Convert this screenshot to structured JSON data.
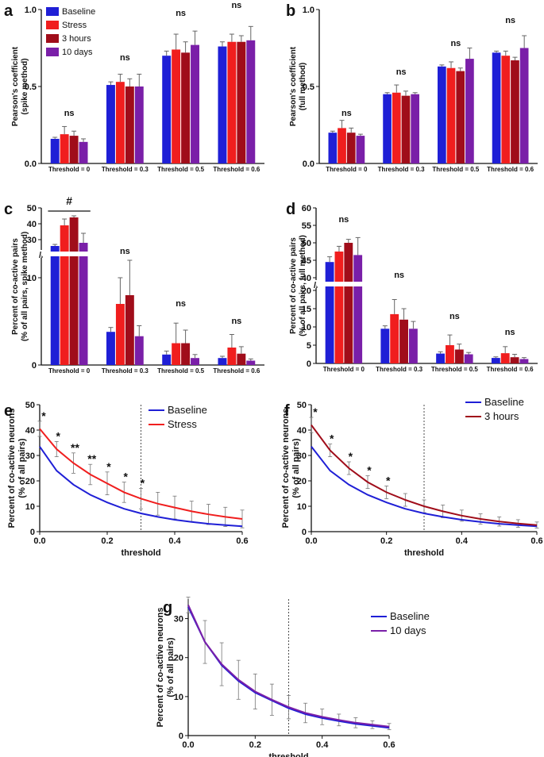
{
  "figure": {
    "legend_groups": [
      "Baseline",
      "Stress",
      "3 hours",
      "10 days"
    ],
    "colors": {
      "Baseline": "#1f1fd6",
      "Stress": "#f01e1e",
      "3 hours": "#a00d1a",
      "10 days": "#7a1fa8"
    },
    "axis_break": "//"
  },
  "chart_data": [
    {
      "id": "a",
      "type": "bar",
      "panel_label": "a",
      "ylabel_lines": [
        "Pearson's coefficient",
        "(spike method)"
      ],
      "ylim": [
        0,
        1
      ],
      "yticks": [
        "0.0",
        "0.5",
        "1.0"
      ],
      "categories": [
        "Threshold = 0",
        "Threshold = 0.3",
        "Threshold = 0.5",
        "Threshold = 0.6"
      ],
      "series": [
        {
          "name": "Baseline",
          "values": [
            0.16,
            0.51,
            0.7,
            0.76
          ],
          "errors": [
            0.01,
            0.02,
            0.03,
            0.03
          ]
        },
        {
          "name": "Stress",
          "values": [
            0.19,
            0.53,
            0.74,
            0.79
          ],
          "errors": [
            0.05,
            0.05,
            0.1,
            0.05
          ]
        },
        {
          "name": "3 hours",
          "values": [
            0.18,
            0.5,
            0.72,
            0.79
          ],
          "errors": [
            0.03,
            0.05,
            0.07,
            0.04
          ]
        },
        {
          "name": "10 days",
          "values": [
            0.14,
            0.5,
            0.77,
            0.8
          ],
          "errors": [
            0.02,
            0.08,
            0.09,
            0.09
          ]
        }
      ],
      "annotations": [
        "ns",
        "ns",
        "ns",
        "ns"
      ]
    },
    {
      "id": "b",
      "type": "bar",
      "panel_label": "b",
      "ylabel_lines": [
        "Pearson's coefficient",
        "(full method)"
      ],
      "ylim": [
        0,
        1
      ],
      "yticks": [
        "0.0",
        "0.5",
        "1.0"
      ],
      "categories": [
        "Threshold = 0",
        "Threshold = 0.3",
        "Threshold = 0.5",
        "Threshold = 0.6"
      ],
      "series": [
        {
          "name": "Baseline",
          "values": [
            0.2,
            0.45,
            0.63,
            0.72
          ],
          "errors": [
            0.01,
            0.01,
            0.01,
            0.01
          ]
        },
        {
          "name": "Stress",
          "values": [
            0.23,
            0.46,
            0.62,
            0.7
          ],
          "errors": [
            0.05,
            0.05,
            0.04,
            0.03
          ]
        },
        {
          "name": "3 hours",
          "values": [
            0.2,
            0.44,
            0.6,
            0.67
          ],
          "errors": [
            0.03,
            0.03,
            0.02,
            0.02
          ]
        },
        {
          "name": "10 days",
          "values": [
            0.18,
            0.45,
            0.68,
            0.75
          ],
          "errors": [
            0.01,
            0.01,
            0.07,
            0.08
          ]
        }
      ],
      "annotations": [
        "ns",
        "ns",
        "ns",
        "ns"
      ]
    },
    {
      "id": "c",
      "type": "bar",
      "panel_label": "c",
      "broken_axis": true,
      "ylabel_lines": [
        "Percent of co-active pairs",
        "(% of all pairs, spike method)"
      ],
      "lower_range": [
        0,
        12
      ],
      "upper_range": [
        25,
        50
      ],
      "yticks": [
        "0",
        "10",
        "30",
        "40",
        "50"
      ],
      "categories": [
        "Threshold = 0",
        "Threshold = 0.3",
        "Threshold = 0.5",
        "Threshold = 0.6"
      ],
      "series": [
        {
          "name": "Baseline",
          "values": [
            26,
            3.8,
            1.2,
            0.8
          ],
          "errors": [
            1.0,
            0.5,
            0.4,
            0.2
          ]
        },
        {
          "name": "Stress",
          "values": [
            39,
            7.0,
            2.5,
            2.0
          ],
          "errors": [
            4.0,
            3.0,
            2.3,
            1.5
          ]
        },
        {
          "name": "3 hours",
          "values": [
            44,
            8.0,
            2.5,
            1.3
          ],
          "errors": [
            1.0,
            4.0,
            1.5,
            0.8
          ]
        },
        {
          "name": "10 days",
          "values": [
            28,
            3.3,
            0.8,
            0.5
          ],
          "errors": [
            6.0,
            1.2,
            0.4,
            0.2
          ]
        }
      ],
      "annotations": [
        "#",
        "ns",
        "ns",
        "ns"
      ]
    },
    {
      "id": "d",
      "type": "bar",
      "panel_label": "d",
      "broken_axis": true,
      "ylabel_lines": [
        "Percent of co-active pairs",
        "(% of all pairs, full method)"
      ],
      "lower_range": [
        0,
        20
      ],
      "upper_range": [
        40,
        60
      ],
      "yticks": [
        "0",
        "5",
        "10",
        "15",
        "20",
        "40",
        "45",
        "50",
        "55",
        "60"
      ],
      "categories": [
        "Threshold = 0",
        "Threshold = 0.3",
        "Threshold = 0.5",
        "Threshold = 0.6"
      ],
      "series": [
        {
          "name": "Baseline",
          "values": [
            44.5,
            9.5,
            2.7,
            1.5
          ],
          "errors": [
            1.5,
            0.8,
            0.5,
            0.3
          ]
        },
        {
          "name": "Stress",
          "values": [
            47.5,
            13.5,
            5.0,
            2.8
          ],
          "errors": [
            1.5,
            4.0,
            2.8,
            1.8
          ]
        },
        {
          "name": "3 hours",
          "values": [
            50,
            12.0,
            3.8,
            1.7
          ],
          "errors": [
            1.0,
            3.0,
            1.5,
            0.8
          ]
        },
        {
          "name": "10 days",
          "values": [
            46.5,
            9.5,
            2.5,
            1.2
          ],
          "errors": [
            5.0,
            2.0,
            0.5,
            0.4
          ]
        }
      ],
      "annotations": [
        "ns",
        "ns",
        "ns",
        "ns"
      ]
    },
    {
      "id": "e",
      "type": "line",
      "panel_label": "e",
      "xlabel": "threshold",
      "ylabel_lines": [
        "Percent of co-active neurons",
        "(% of all pairs)"
      ],
      "xlim": [
        0,
        0.6
      ],
      "ylim": [
        0,
        50
      ],
      "xticks": [
        "0.0",
        "0.2",
        "0.4",
        "0.6"
      ],
      "yticks": [
        "0",
        "10",
        "20",
        "30",
        "40",
        "50"
      ],
      "x": [
        0,
        0.05,
        0.1,
        0.15,
        0.2,
        0.25,
        0.3,
        0.35,
        0.4,
        0.45,
        0.5,
        0.55,
        0.6
      ],
      "series": [
        {
          "name": "Baseline",
          "values": [
            33.5,
            24,
            18.5,
            14.5,
            11.5,
            9,
            7.2,
            5.8,
            4.7,
            3.8,
            3.1,
            2.6,
            2.1
          ]
        },
        {
          "name": "Stress",
          "values": [
            40.5,
            32.5,
            27,
            22.5,
            19,
            15.5,
            13,
            11,
            9.5,
            8,
            6.8,
            5.8,
            5
          ],
          "errors": [
            3,
            3,
            4,
            4,
            4.5,
            4,
            4,
            4.5,
            4.5,
            4,
            4,
            3.8,
            3.5
          ]
        }
      ],
      "dashed_vline_x": 0.3,
      "stars": [
        {
          "x": 0,
          "label": "*"
        },
        {
          "x": 0.05,
          "label": "*"
        },
        {
          "x": 0.1,
          "label": "**"
        },
        {
          "x": 0.15,
          "label": "**"
        },
        {
          "x": 0.2,
          "label": "*"
        },
        {
          "x": 0.25,
          "label": "*"
        },
        {
          "x": 0.3,
          "label": "*"
        }
      ]
    },
    {
      "id": "f",
      "type": "line",
      "panel_label": "f",
      "xlabel": "threshold",
      "ylabel_lines": [
        "Percent of co-active neurons",
        "(% of all pairs)"
      ],
      "xlim": [
        0,
        0.6
      ],
      "ylim": [
        0,
        50
      ],
      "xticks": [
        "0.0",
        "0.2",
        "0.4",
        "0.6"
      ],
      "yticks": [
        "0",
        "10",
        "20",
        "30",
        "40",
        "50"
      ],
      "x": [
        0,
        0.05,
        0.1,
        0.15,
        0.2,
        0.25,
        0.3,
        0.35,
        0.4,
        0.45,
        0.5,
        0.55,
        0.6
      ],
      "series": [
        {
          "name": "Baseline",
          "values": [
            33.5,
            24,
            18.5,
            14.5,
            11.5,
            9,
            7.2,
            5.8,
            4.7,
            3.8,
            3.1,
            2.6,
            2.1
          ]
        },
        {
          "name": "3 hours",
          "values": [
            42,
            32,
            25,
            19.5,
            15.5,
            12.5,
            10,
            8,
            6.3,
            5,
            4,
            3.2,
            2.6
          ],
          "errors": [
            3,
            2.5,
            2.5,
            2.5,
            2.5,
            2.5,
            2.5,
            2.5,
            2.2,
            2,
            1.8,
            1.5,
            1.2
          ]
        }
      ],
      "dashed_vline_x": 0.3,
      "stars": [
        {
          "x": 0,
          "label": "*"
        },
        {
          "x": 0.05,
          "label": "*"
        },
        {
          "x": 0.1,
          "label": "*"
        },
        {
          "x": 0.15,
          "label": "*"
        },
        {
          "x": 0.2,
          "label": "*"
        }
      ]
    },
    {
      "id": "g",
      "type": "line",
      "panel_label": "g",
      "xlabel": "threshold",
      "ylabel_lines": [
        "Percent of co-active neurons",
        "(% of all pairs)"
      ],
      "xlim": [
        0,
        0.6
      ],
      "ylim": [
        0,
        35
      ],
      "xticks": [
        "0.0",
        "0.2",
        "0.4",
        "0.6"
      ],
      "yticks": [
        "0",
        "10",
        "20",
        "30"
      ],
      "x": [
        0,
        0.05,
        0.1,
        0.15,
        0.2,
        0.25,
        0.3,
        0.35,
        0.4,
        0.45,
        0.5,
        0.55,
        0.6
      ],
      "series": [
        {
          "name": "Baseline",
          "values": [
            33,
            24,
            18,
            14,
            11,
            9,
            7,
            5.5,
            4.5,
            3.7,
            3,
            2.5,
            2.0
          ]
        },
        {
          "name": "10 days",
          "values": [
            33.5,
            24,
            18.3,
            14.3,
            11.3,
            9.2,
            7.3,
            5.8,
            4.8,
            4,
            3.3,
            2.8,
            2.3
          ],
          "errors": [
            2,
            5.5,
            5.5,
            5,
            4.5,
            4,
            3,
            2.5,
            2,
            1.5,
            1.3,
            1,
            0.8
          ]
        }
      ],
      "dashed_vline_x": 0.3,
      "stars": []
    }
  ]
}
